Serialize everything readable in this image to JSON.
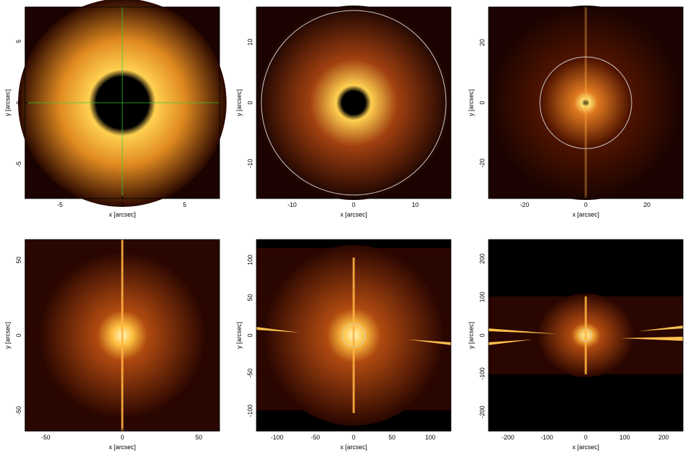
{
  "chart_data": [
    {
      "type": "image",
      "xlabel": "x [arcsec]",
      "ylabel": "y [arcsec]",
      "xlim": [
        -7.8,
        7.8
      ],
      "ylim": [
        -7.8,
        7.8
      ],
      "xticks": [
        -5,
        0,
        5
      ],
      "yticks": [
        -5,
        0,
        5
      ]
    },
    {
      "type": "image",
      "xlabel": "x [arcsec]",
      "ylabel": "y [arcsec]",
      "xlim": [
        -15.8,
        15.8
      ],
      "ylim": [
        -15.8,
        15.8
      ],
      "xticks": [
        -10,
        0,
        10
      ],
      "yticks": [
        -10,
        0,
        10
      ],
      "circle_radius": 15
    },
    {
      "type": "image",
      "xlabel": "x [arcsec]",
      "ylabel": "y [arcsec]",
      "xlim": [
        -31.8,
        31.8
      ],
      "ylim": [
        -31.8,
        31.8
      ],
      "xticks": [
        -20,
        0,
        20
      ],
      "yticks": [
        -20,
        0,
        20
      ],
      "circle_radius": 15
    },
    {
      "type": "image",
      "xlabel": "x [arcsec]",
      "ylabel": "y [arcsec]",
      "xlim": [
        -63.6,
        63.6
      ],
      "ylim": [
        -63.6,
        63.6
      ],
      "xticks": [
        -50,
        0,
        50
      ],
      "yticks": [
        -50,
        0,
        50
      ]
    },
    {
      "type": "image",
      "xlabel": "x [arcsec]",
      "ylabel": "y [arcsec]",
      "xlim": [
        -127,
        127
      ],
      "ylim": [
        -127,
        127
      ],
      "xticks": [
        -100,
        -50,
        0,
        50,
        100
      ],
      "yticks": [
        -100,
        -50,
        0,
        50,
        100
      ],
      "circle_radius": 15
    },
    {
      "type": "image",
      "xlabel": "x [arcsec]",
      "ylabel": "y [arcsec]",
      "xlim": [
        -250,
        250
      ],
      "ylim": [
        -250,
        250
      ],
      "xticks": [
        -200,
        -100,
        0,
        100,
        200
      ],
      "yticks": [
        -200,
        -100,
        0,
        100,
        200
      ],
      "circle_radius": 15
    }
  ]
}
